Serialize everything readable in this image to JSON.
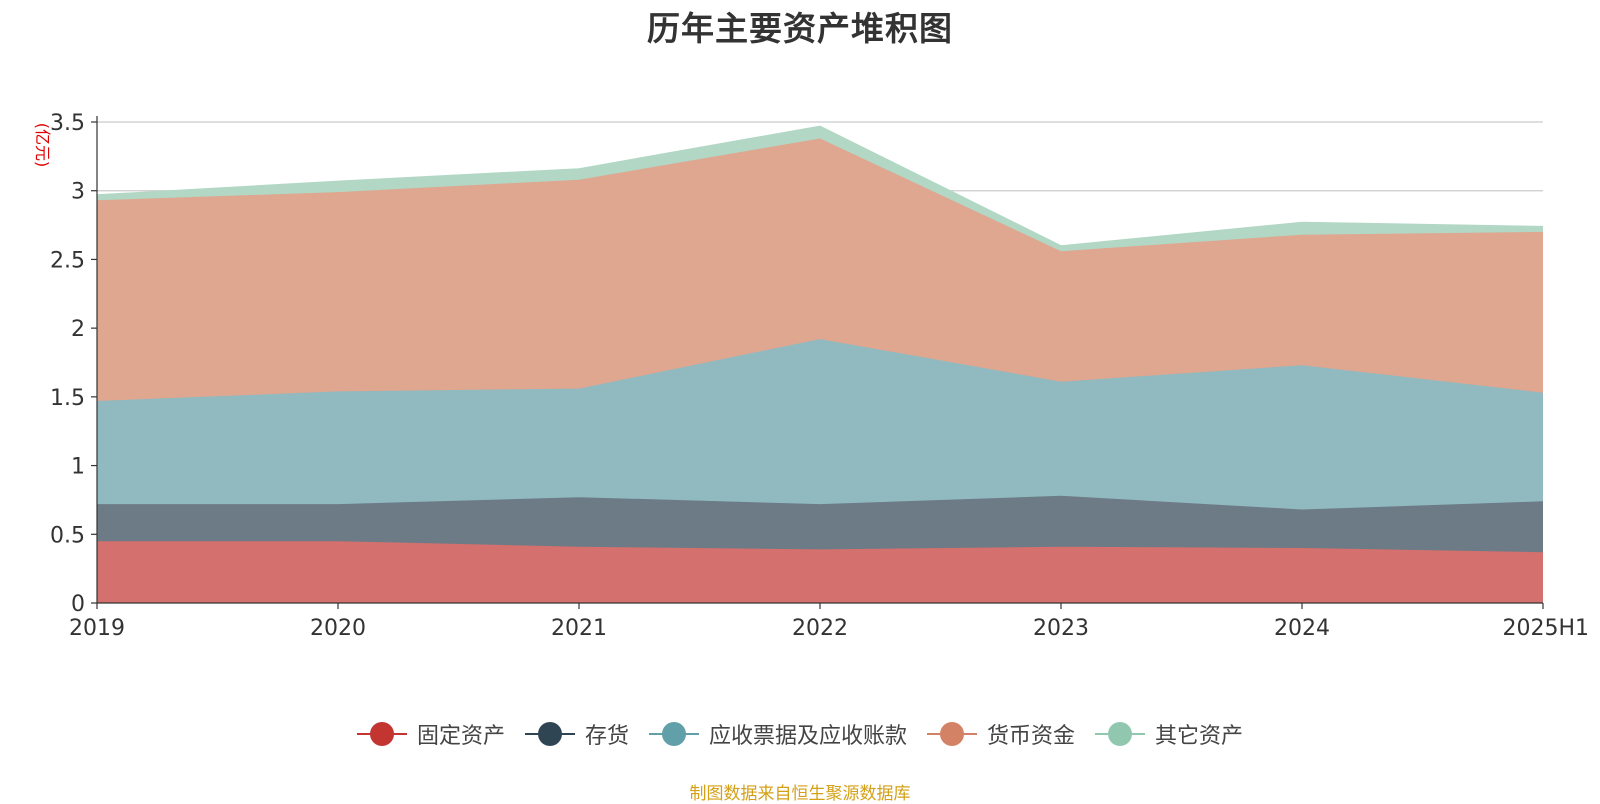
{
  "chart_data": {
    "type": "area",
    "stacked": true,
    "title": "历年主要资产堆积图",
    "unit_label": "(亿元)",
    "categories": [
      "2019",
      "2020",
      "2021",
      "2022",
      "2023",
      "2024",
      "2025H1"
    ],
    "ylim": [
      0,
      3.5
    ],
    "yticks": [
      "0",
      "0.5",
      "1",
      "1.5",
      "2",
      "2.5",
      "3",
      "3.5"
    ],
    "grid": true,
    "legend_position": "bottom",
    "series": [
      {
        "name": "固定资产",
        "color": "#c23531",
        "fill": "#d4706d",
        "values": [
          0.45,
          0.45,
          0.41,
          0.39,
          0.41,
          0.4,
          0.37
        ]
      },
      {
        "name": "存货",
        "color": "#2f4554",
        "fill": "#6d7b87",
        "values": [
          0.27,
          0.27,
          0.36,
          0.33,
          0.37,
          0.28,
          0.37
        ]
      },
      {
        "name": "应收票据及应收账款",
        "color": "#61a0a8",
        "fill": "#90bac0",
        "values": [
          0.75,
          0.82,
          0.79,
          1.2,
          0.83,
          1.05,
          0.79
        ]
      },
      {
        "name": "货币资金",
        "color": "#d48265",
        "fill": "#dfa690",
        "values": [
          1.46,
          1.45,
          1.52,
          1.46,
          0.95,
          0.95,
          1.17
        ]
      },
      {
        "name": "其它资产",
        "color": "#91c7ae",
        "fill": "#b2d7c5",
        "values": [
          0.04,
          0.08,
          0.08,
          0.09,
          0.04,
          0.09,
          0.04
        ]
      }
    ]
  },
  "source_note": "制图数据来自恒生聚源数据库"
}
